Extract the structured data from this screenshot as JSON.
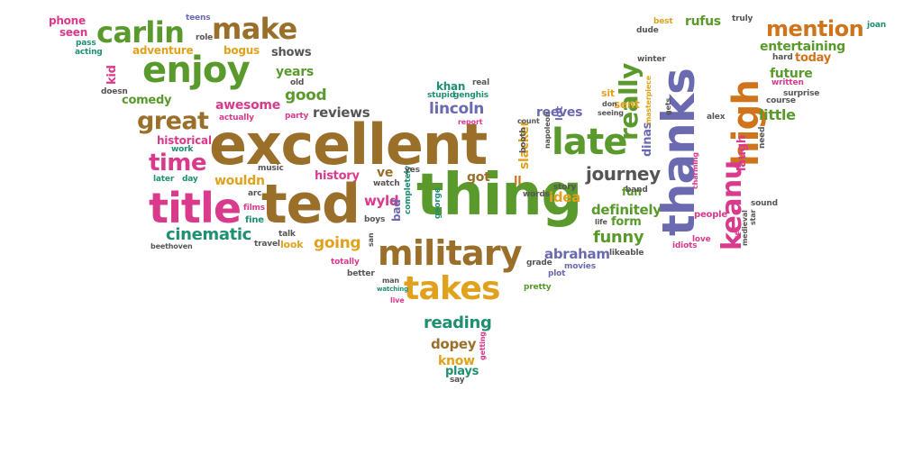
{
  "palette": {
    "brown": "#9a6f2a",
    "green": "#5a9a2c",
    "pink": "#d93a8c",
    "orange": "#d0741c",
    "teal": "#1f8f72",
    "purple": "#6b69b0",
    "gold": "#e0a21c",
    "gray": "#555555"
  },
  "words": [
    {
      "text": "excellent",
      "color": "brown"
    },
    {
      "text": "thing",
      "color": "green"
    },
    {
      "text": "ted",
      "color": "brown"
    },
    {
      "text": "thanks",
      "color": "purple"
    },
    {
      "text": "high",
      "color": "orange"
    },
    {
      "text": "keanu",
      "color": "pink"
    },
    {
      "text": "title",
      "color": "pink"
    },
    {
      "text": "military",
      "color": "brown"
    },
    {
      "text": "late",
      "color": "green"
    },
    {
      "text": "enjoy",
      "color": "green"
    },
    {
      "text": "takes",
      "color": "gold"
    },
    {
      "text": "make",
      "color": "brown"
    },
    {
      "text": "carlin",
      "color": "green"
    },
    {
      "text": "really",
      "color": "green"
    },
    {
      "text": "great",
      "color": "brown"
    },
    {
      "text": "mention",
      "color": "orange"
    },
    {
      "text": "time",
      "color": "pink"
    },
    {
      "text": "journey",
      "color": "gray"
    },
    {
      "text": "funny",
      "color": "green"
    },
    {
      "text": "cinematic",
      "color": "teal"
    },
    {
      "text": "going",
      "color": "gold"
    },
    {
      "text": "reading",
      "color": "teal"
    },
    {
      "text": "abraham",
      "color": "purple"
    },
    {
      "text": "lincoln",
      "color": "purple"
    },
    {
      "text": "good",
      "color": "green"
    },
    {
      "text": "awesome",
      "color": "pink"
    },
    {
      "text": "entertaining",
      "color": "green"
    },
    {
      "text": "rufus",
      "color": "green"
    },
    {
      "text": "future",
      "color": "green"
    },
    {
      "text": "today",
      "color": "orange"
    },
    {
      "text": "little",
      "color": "green"
    },
    {
      "text": "laugh",
      "color": "pink"
    },
    {
      "text": "dopey",
      "color": "brown"
    },
    {
      "text": "know",
      "color": "gold"
    },
    {
      "text": "plays",
      "color": "teal"
    },
    {
      "text": "definitely",
      "color": "green"
    },
    {
      "text": "form",
      "color": "green"
    },
    {
      "text": "fun",
      "color": "green"
    },
    {
      "text": "idea",
      "color": "gold"
    },
    {
      "text": "slacker",
      "color": "gold"
    },
    {
      "text": "dinas",
      "color": "purple"
    },
    {
      "text": "lot",
      "color": "purple"
    },
    {
      "text": "reeves",
      "color": "purple"
    },
    {
      "text": "got",
      "color": "brown"
    },
    {
      "text": "ll",
      "color": "orange"
    },
    {
      "text": "wyld",
      "color": "pink"
    },
    {
      "text": "ve",
      "color": "brown"
    },
    {
      "text": "history",
      "color": "pink"
    },
    {
      "text": "wouldn",
      "color": "gold"
    },
    {
      "text": "reviews",
      "color": "gray"
    },
    {
      "text": "years",
      "color": "green"
    },
    {
      "text": "shows",
      "color": "gray"
    },
    {
      "text": "bogus",
      "color": "gold"
    },
    {
      "text": "adventure",
      "color": "gold"
    },
    {
      "text": "comedy",
      "color": "green"
    },
    {
      "text": "historical",
      "color": "pink"
    },
    {
      "text": "kid",
      "color": "pink"
    },
    {
      "text": "seen",
      "color": "pink"
    },
    {
      "text": "phone",
      "color": "pink"
    },
    {
      "text": "pass",
      "color": "teal"
    },
    {
      "text": "acting",
      "color": "teal"
    },
    {
      "text": "teens",
      "color": "purple"
    },
    {
      "text": "role",
      "color": "gray"
    },
    {
      "text": "doesn",
      "color": "gray"
    },
    {
      "text": "old",
      "color": "gray"
    },
    {
      "text": "actually",
      "color": "pink"
    },
    {
      "text": "party",
      "color": "pink"
    },
    {
      "text": "work",
      "color": "teal"
    },
    {
      "text": "music",
      "color": "gray"
    },
    {
      "text": "later",
      "color": "teal"
    },
    {
      "text": "day",
      "color": "teal"
    },
    {
      "text": "arc",
      "color": "gray"
    },
    {
      "text": "films",
      "color": "pink"
    },
    {
      "text": "fine",
      "color": "teal"
    },
    {
      "text": "talk",
      "color": "gray"
    },
    {
      "text": "travel",
      "color": "gray"
    },
    {
      "text": "look",
      "color": "gold"
    },
    {
      "text": "beethoven",
      "color": "gray"
    },
    {
      "text": "totally",
      "color": "pink"
    },
    {
      "text": "better",
      "color": "gray"
    },
    {
      "text": "man",
      "color": "gray"
    },
    {
      "text": "watching",
      "color": "teal"
    },
    {
      "text": "live",
      "color": "pink"
    },
    {
      "text": "bad",
      "color": "purple"
    },
    {
      "text": "boys",
      "color": "gray"
    },
    {
      "text": "completely",
      "color": "teal"
    },
    {
      "text": "george",
      "color": "teal"
    },
    {
      "text": "san",
      "color": "gray"
    },
    {
      "text": "watch",
      "color": "gray"
    },
    {
      "text": "yes",
      "color": "gray"
    },
    {
      "text": "booth",
      "color": "gray"
    },
    {
      "text": "napoleon",
      "color": "gray"
    },
    {
      "text": "count",
      "color": "gray"
    },
    {
      "text": "story",
      "color": "gray"
    },
    {
      "text": "words",
      "color": "gray"
    },
    {
      "text": "grade",
      "color": "gray"
    },
    {
      "text": "pretty",
      "color": "green"
    },
    {
      "text": "plot",
      "color": "purple"
    },
    {
      "text": "movies",
      "color": "purple"
    },
    {
      "text": "likeable",
      "color": "gray"
    },
    {
      "text": "life",
      "color": "gray"
    },
    {
      "text": "band",
      "color": "gray"
    },
    {
      "text": "khan",
      "color": "teal"
    },
    {
      "text": "real",
      "color": "gray"
    },
    {
      "text": "stupid",
      "color": "teal"
    },
    {
      "text": "genghis",
      "color": "teal"
    },
    {
      "text": "report",
      "color": "pink"
    },
    {
      "text": "sent",
      "color": "gold"
    },
    {
      "text": "sit",
      "color": "gold"
    },
    {
      "text": "don",
      "color": "gray"
    },
    {
      "text": "seeing",
      "color": "gray"
    },
    {
      "text": "masterpiece",
      "color": "gold"
    },
    {
      "text": "gets",
      "color": "gray"
    },
    {
      "text": "winter",
      "color": "gray"
    },
    {
      "text": "dude",
      "color": "gray"
    },
    {
      "text": "best",
      "color": "gold"
    },
    {
      "text": "truly",
      "color": "gray"
    },
    {
      "text": "joan",
      "color": "teal"
    },
    {
      "text": "hard",
      "color": "gray"
    },
    {
      "text": "course",
      "color": "gray"
    },
    {
      "text": "written",
      "color": "pink"
    },
    {
      "text": "surprise",
      "color": "gray"
    },
    {
      "text": "need",
      "color": "gray"
    },
    {
      "text": "alex",
      "color": "gray"
    },
    {
      "text": "charming",
      "color": "pink"
    },
    {
      "text": "star",
      "color": "gray"
    },
    {
      "text": "sound",
      "color": "gray"
    },
    {
      "text": "people",
      "color": "pink"
    },
    {
      "text": "medieval",
      "color": "gray"
    },
    {
      "text": "set",
      "color": "pink"
    },
    {
      "text": "idiots",
      "color": "pink"
    },
    {
      "text": "love",
      "color": "pink"
    },
    {
      "text": "getting",
      "color": "pink"
    },
    {
      "text": "say",
      "color": "gray"
    }
  ]
}
